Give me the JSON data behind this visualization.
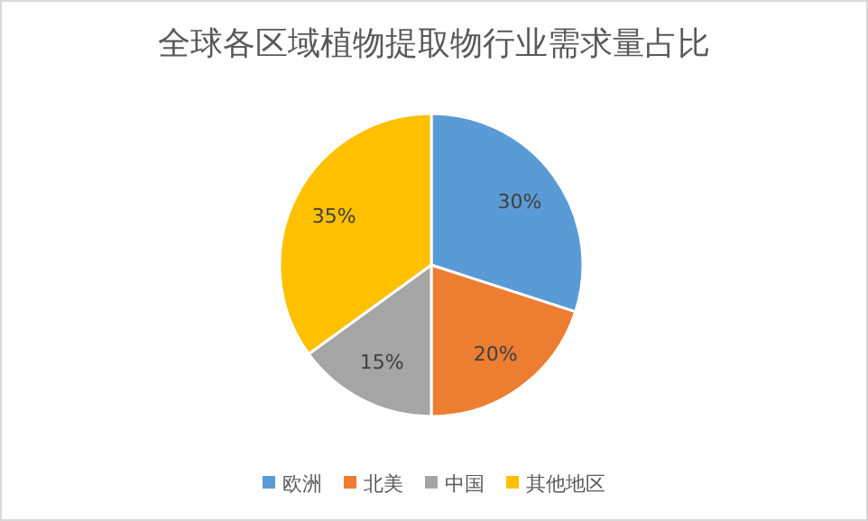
{
  "chart_data": {
    "type": "pie",
    "title": "全球各区域植物提取物行业需求量占比",
    "categories": [
      "欧洲",
      "北美",
      "中国",
      "其他地区"
    ],
    "values": [
      30,
      20,
      15,
      35
    ],
    "colors": [
      "#5b9bd5",
      "#ed7d31",
      "#a5a5a5",
      "#ffc000"
    ],
    "value_labels": [
      "30%",
      "20%",
      "15%",
      "35%"
    ],
    "legend": "bottom"
  }
}
